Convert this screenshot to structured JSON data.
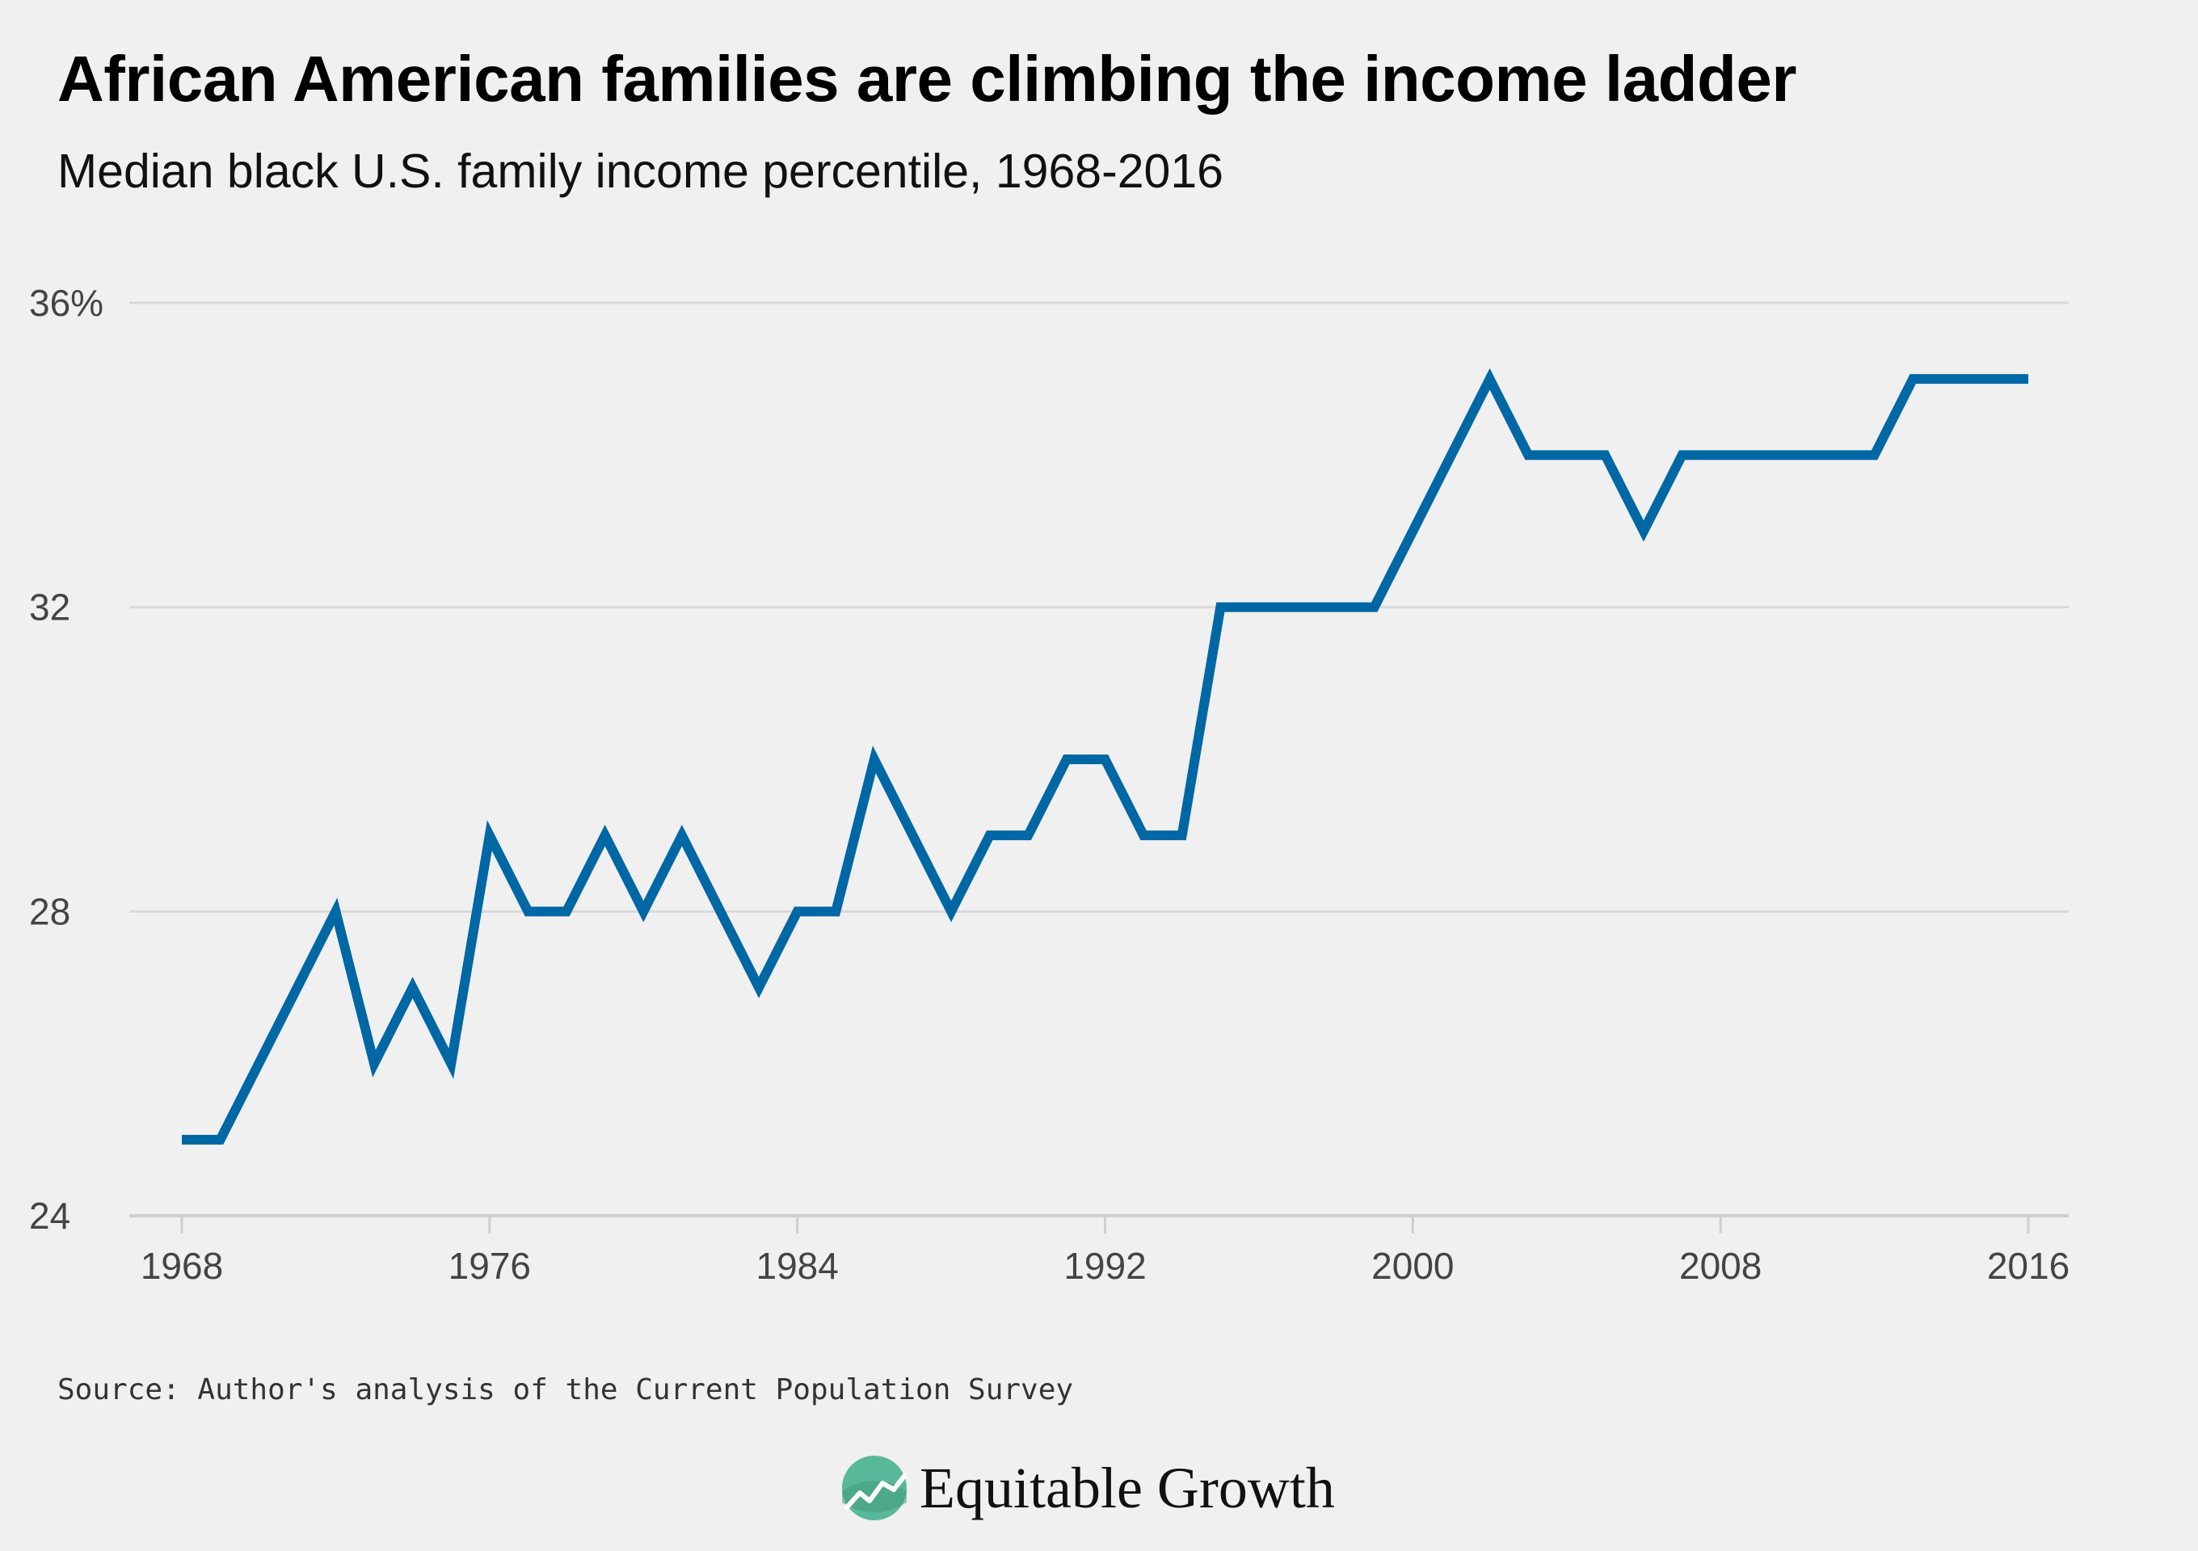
{
  "header": {
    "title": "African American families are climbing the income ladder",
    "subtitle": "Median black U.S. family income percentile, 1968-2016"
  },
  "footer": {
    "source": "Source: Author's analysis of the Current Population Survey",
    "brand": "Equitable Growth"
  },
  "colors": {
    "line": "#0067a5",
    "grid": "#d9d9d9",
    "axis": "#cfcfcf",
    "background": "#f0f0f0",
    "logo": "#5ab89a"
  },
  "icons": {
    "logo": "equitable-growth-logo-icon"
  },
  "chart_data": {
    "type": "line",
    "title": "African American families are climbing the income ladder",
    "subtitle": "Median black U.S. family income percentile, 1968-2016",
    "xlim": [
      1968,
      2016
    ],
    "ylim": [
      24,
      36
    ],
    "x_ticks": [
      1968,
      1976,
      1984,
      1992,
      2000,
      2008,
      2016
    ],
    "x_tick_labels": [
      "1968",
      "1976",
      "1984",
      "1992",
      "2000",
      "2008",
      "2016"
    ],
    "y_ticks": [
      24,
      28,
      32,
      36
    ],
    "y_tick_labels": [
      "24",
      "28",
      "32",
      "36%"
    ],
    "grid": true,
    "series": [
      {
        "x": [
          1968,
          1969,
          1970,
          1971,
          1972,
          1973,
          1974,
          1975,
          1976,
          1977,
          1978,
          1979,
          1980,
          1981,
          1982,
          1983,
          1984,
          1985,
          1986,
          1987,
          1988,
          1989,
          1990,
          1991,
          1992,
          1993,
          1994,
          1995,
          1996,
          1997,
          1998,
          1999,
          2000,
          2001,
          2002,
          2003,
          2004,
          2005,
          2006,
          2007,
          2008,
          2009,
          2010,
          2011,
          2012,
          2013,
          2014,
          2015,
          2016
        ],
        "values": [
          25,
          25,
          26,
          27,
          28,
          26,
          27,
          26,
          29,
          28,
          28,
          29,
          28,
          29,
          28,
          27,
          28,
          28,
          30,
          29,
          28,
          29,
          29,
          30,
          30,
          29,
          29,
          32,
          32,
          32,
          32,
          32,
          33,
          34,
          35,
          34,
          34,
          34,
          33,
          34,
          34,
          34,
          34,
          34,
          34,
          35,
          35,
          35,
          35
        ]
      }
    ]
  }
}
